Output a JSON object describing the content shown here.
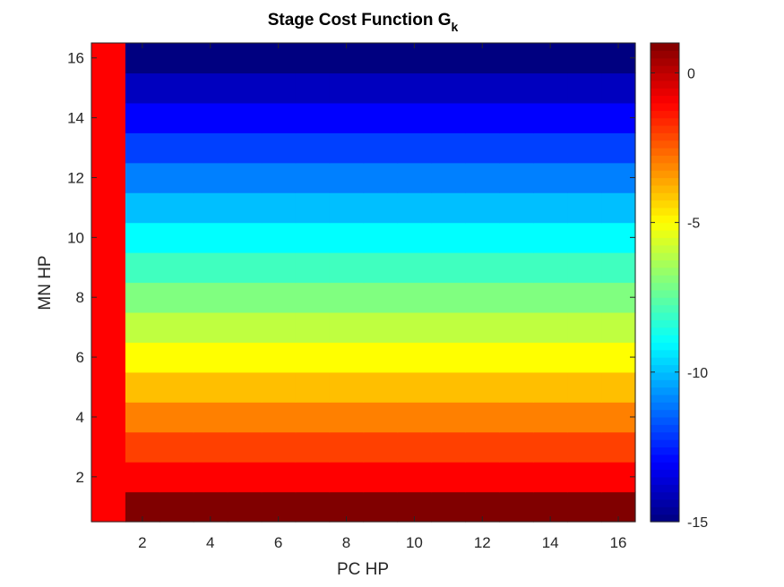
{
  "chart_data": {
    "type": "heatmap",
    "title": "Stage Cost Function G",
    "title_subscript": "k",
    "xlabel": "PC HP",
    "ylabel": "MN HP",
    "x_values": [
      1,
      2,
      3,
      4,
      5,
      6,
      7,
      8,
      9,
      10,
      11,
      12,
      13,
      14,
      15,
      16
    ],
    "y_values": [
      1,
      2,
      3,
      4,
      5,
      6,
      7,
      8,
      9,
      10,
      11,
      12,
      13,
      14,
      15,
      16
    ],
    "xlim": [
      0.5,
      16.5
    ],
    "ylim": [
      0.5,
      16.5
    ],
    "xticks": [
      2,
      4,
      6,
      8,
      10,
      12,
      14,
      16
    ],
    "yticks": [
      2,
      4,
      6,
      8,
      10,
      12,
      14,
      16
    ],
    "column_x1_value": -1,
    "row_values_x_ge_2": [
      1,
      -1,
      -2,
      -3,
      -4,
      -5,
      -6,
      -7,
      -8,
      -9,
      -10,
      -11,
      -12,
      -13,
      -14,
      -15
    ],
    "colormap": "jet",
    "color_limits": [
      -15,
      1
    ],
    "colorbar": {
      "ticks": [
        0,
        -5,
        -10,
        -15
      ],
      "tick_labels": [
        "0",
        "-5",
        "-10",
        "-15"
      ],
      "location": "right"
    },
    "grid": false
  }
}
